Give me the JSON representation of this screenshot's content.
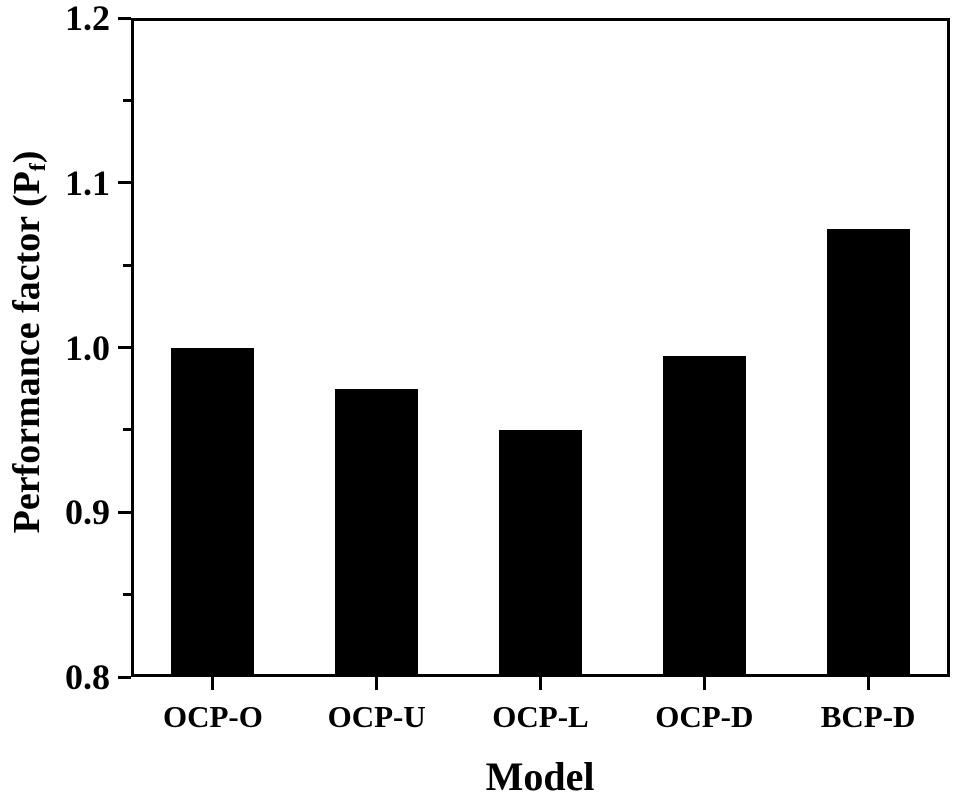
{
  "chart_data": {
    "type": "bar",
    "xlabel": "Model",
    "ylabel": "Performance factor (P_f)",
    "ylabel_parts": {
      "prefix": "Performance factor (P",
      "sub": "f",
      "suffix": ")"
    },
    "categories": [
      "OCP-O",
      "OCP-U",
      "OCP-L",
      "OCP-D",
      "BCP-D"
    ],
    "values": [
      1.0,
      0.975,
      0.95,
      0.995,
      1.072
    ],
    "ylim": [
      0.8,
      1.2
    ],
    "yticks": [
      0.8,
      0.9,
      1.0,
      1.1,
      1.2
    ],
    "ytick_labels": [
      "0.8",
      "0.9",
      "1.0",
      "1.1",
      "1.2"
    ],
    "yticks_minor": [
      0.85,
      0.95,
      1.05,
      1.15
    ],
    "bar_color": "#000000",
    "axis_color": "#000000",
    "background": "#ffffff",
    "grid": false,
    "legend": "none",
    "frame": "full-box"
  }
}
